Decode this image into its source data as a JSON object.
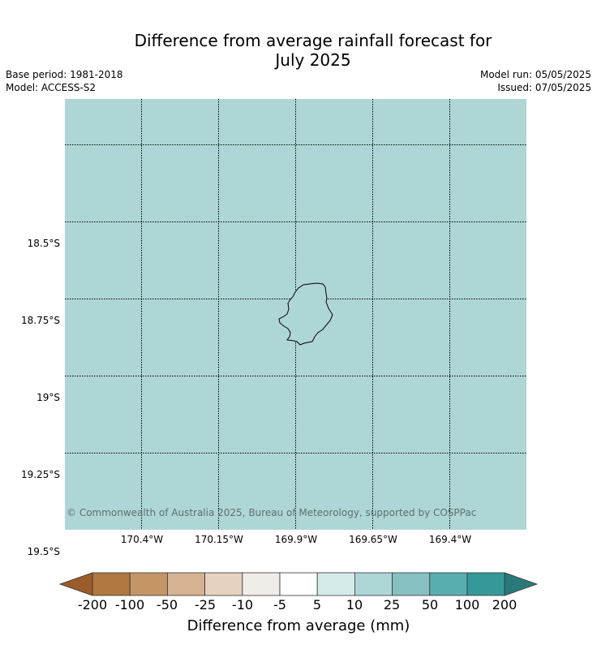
{
  "title_line1": "Difference from average rainfall forecast for",
  "title_line2": "July 2025",
  "meta": {
    "base_period": "Base period: 1981-2018",
    "model": "Model: ACCESS-S2",
    "model_run": "Model run: 05/05/2025",
    "issued": "Issued: 07/05/2025"
  },
  "map": {
    "background_color": "#aed6d6",
    "island_name": "",
    "lat_labels": [
      "18.5°S",
      "18.75°S",
      "19°S",
      "19.25°S",
      "19.5°S"
    ],
    "lon_labels": [
      "170.4°W",
      "170.15°W",
      "169.9°W",
      "169.65°W",
      "169.4°W"
    ],
    "copyright": "© Commonwealth of Australia 2025, Bureau of Meteorology, supported by COSPPac"
  },
  "colorbar": {
    "title": "Difference from average (mm)",
    "tick_labels": [
      "-200",
      "-100",
      "-50",
      "-25",
      "-10",
      "-5",
      "5",
      "10",
      "25",
      "50",
      "100",
      "200"
    ],
    "colors": [
      "#9b5c2b",
      "#b07840",
      "#c49566",
      "#d5b291",
      "#e6d2c0",
      "#f0ece8",
      "#ffffff",
      "#d5ebea",
      "#aed6d6",
      "#86c1c0",
      "#5aadae",
      "#35999a",
      "#2a7a7b"
    ]
  }
}
